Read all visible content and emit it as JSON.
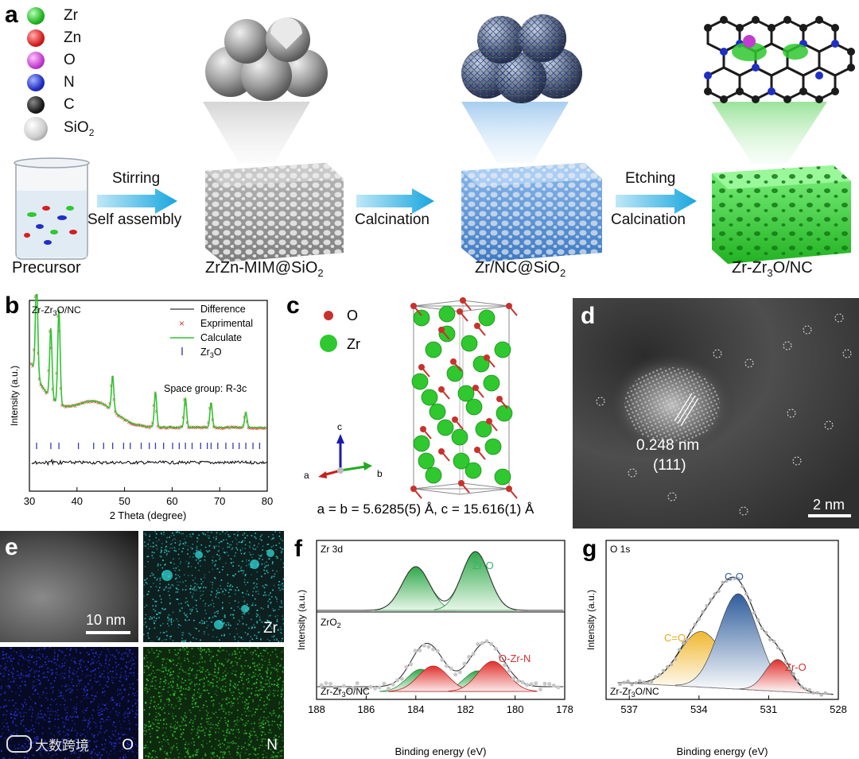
{
  "panel_labels": [
    "a",
    "b",
    "c",
    "d",
    "e",
    "f",
    "g"
  ],
  "a": {
    "legend": [
      {
        "label": "Zr",
        "color": "#2fc82f"
      },
      {
        "label": "Zn",
        "color": "#d61e1e"
      },
      {
        "label": "O",
        "color": "#c23ccf"
      },
      {
        "label": "N",
        "color": "#1f2fc4"
      },
      {
        "label": "C",
        "color": "#1b1b1b"
      },
      {
        "label": "SiO",
        "sub": "2",
        "color": "#cfcfcf"
      }
    ],
    "arrow1_top": "Stirring",
    "arrow1_bottom": "Self assembly",
    "arrow2_bottom": "Calcination",
    "arrow3_top": "Etching",
    "arrow3_bottom": "Calcination",
    "stage1": "Precursor",
    "stage2": {
      "main": "ZrZn-MIM@SiO",
      "sub": "2"
    },
    "stage3": {
      "main": "Zr/NC@SiO",
      "sub": "2"
    },
    "stage4": {
      "pre": "Zr-Zr",
      "sub": "3",
      "post": "O/NC"
    }
  },
  "b": {
    "chart_data": {
      "type": "line",
      "title_pre": "Zr-Zr",
      "title_sub": "3",
      "title_post": "O/NC",
      "xlabel": "2 Theta (degree)",
      "ylabel": "Intensity (a.u.)",
      "xlim": [
        30,
        80
      ],
      "xticks": [
        30,
        40,
        50,
        60,
        70,
        80
      ],
      "legend": [
        {
          "name": "Difference",
          "color": "#000000"
        },
        {
          "name": "Exprimental",
          "color": "#d63c2c"
        },
        {
          "name": "Calculate",
          "color": "#31c331"
        },
        {
          "name_pre": "Zr",
          "name_sub": "3",
          "name_post": "O",
          "color": "#3b3bb0"
        }
      ],
      "annotation": "Space group: R-3c",
      "peaks": [
        31.5,
        34.5,
        36.2,
        47.5,
        56.5,
        62.8,
        68.2,
        75.5
      ],
      "ticks_zr3o": [
        31.5,
        34.5,
        36.2,
        40.3,
        43.5,
        45.6,
        47.5,
        49.8,
        51.2,
        53.5,
        55.2,
        56.5,
        58.2,
        60.1,
        61.5,
        62.8,
        64.2,
        66.0,
        67.4,
        68.2,
        69.6,
        71.3,
        72.8,
        74.1,
        75.5,
        77.0,
        78.4
      ]
    }
  },
  "c": {
    "legend": [
      {
        "label": "O",
        "color": "#c8322c"
      },
      {
        "label": "Zr",
        "color": "#2fc82f"
      }
    ],
    "axes": [
      "c",
      "a",
      "b"
    ],
    "lattice": "a = b = 5.6285(5) Å, c = 15.616(1) Å"
  },
  "d": {
    "spacing": "0.248 nm",
    "plane": "(111)",
    "scale": "2 nm"
  },
  "e": {
    "scale": "10 nm",
    "maps": [
      "Zr",
      "O",
      "N"
    ],
    "watermark": "大数跨境"
  },
  "f": {
    "chart_data": {
      "type": "area",
      "top_label": "Zr 3d",
      "top_peak_label": "Zr-O",
      "bottom_label_pre": "ZrO",
      "bottom_label_sub": "2",
      "bottom_peak_label": "O-Zr-N",
      "sample_pre": "Zr-Zr",
      "sample_sub": "3",
      "sample_post": "O/NC",
      "xlabel": "Binding energy (eV)",
      "ylabel": "Intensity (a.u.)",
      "xlim": [
        188,
        178
      ],
      "xticks": [
        188,
        186,
        184,
        182,
        180,
        178
      ],
      "top_peaks": [
        184.0,
        181.6
      ],
      "bottom_peaks_green": [
        183.8,
        181.5
      ],
      "bottom_peaks_red": [
        183.3,
        180.9
      ]
    }
  },
  "g": {
    "chart_data": {
      "type": "area",
      "top_label": "O 1s",
      "sample_pre": "Zr-Zr",
      "sample_sub": "3",
      "sample_post": "O/NC",
      "xlabel": "Binding energy (eV)",
      "ylabel": "Intensity (a.u.)",
      "xlim": [
        538,
        528
      ],
      "xticks": [
        537,
        534,
        531,
        528
      ],
      "peaks": [
        {
          "name": "C=O",
          "center": 533.9,
          "color": "#f0b830"
        },
        {
          "name": "C-O",
          "center": 532.3,
          "color": "#2f5d9c"
        },
        {
          "name": "Zr-O",
          "center": 530.6,
          "color": "#e0302c"
        }
      ]
    }
  }
}
